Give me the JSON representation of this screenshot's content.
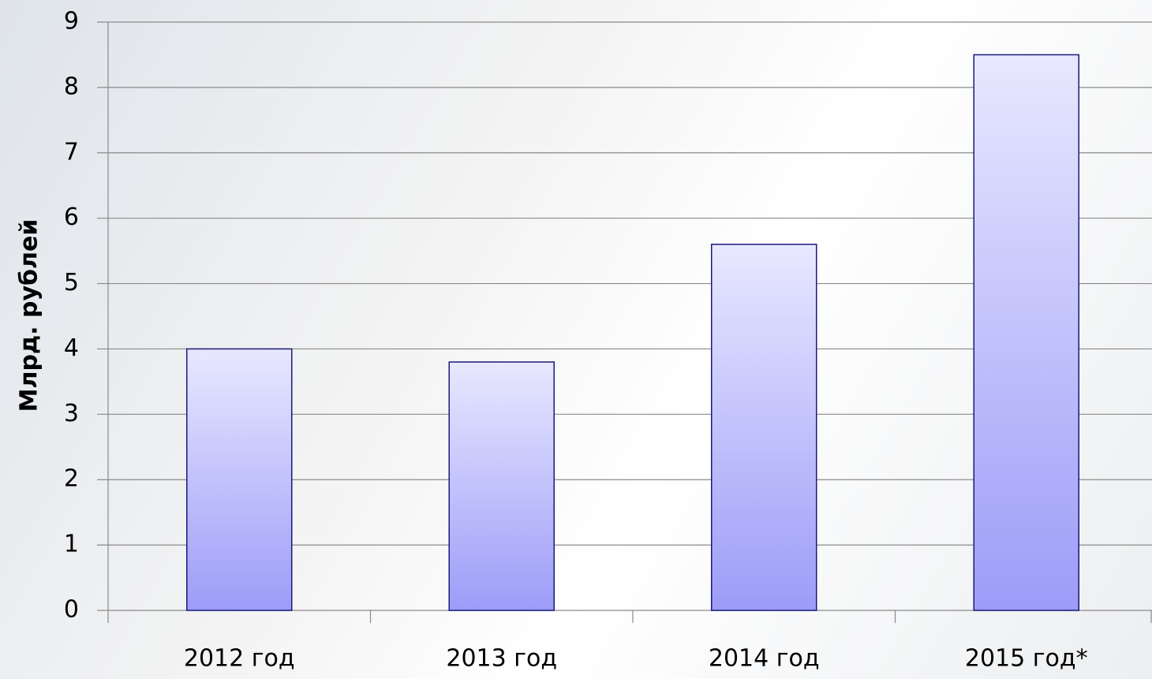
{
  "chart_data": {
    "type": "bar",
    "y_label": "Млрд. рублей",
    "categories": [
      "2012 год",
      "2013 год",
      "2014 год",
      "2015 год*"
    ],
    "values": [
      4,
      3.8,
      5.6,
      8.5
    ],
    "color": "#a8a8fa",
    "ylim": [
      0,
      9
    ],
    "yticks": [
      0,
      1,
      2,
      3,
      4,
      5,
      6,
      7,
      8,
      9
    ],
    "grid": true
  }
}
